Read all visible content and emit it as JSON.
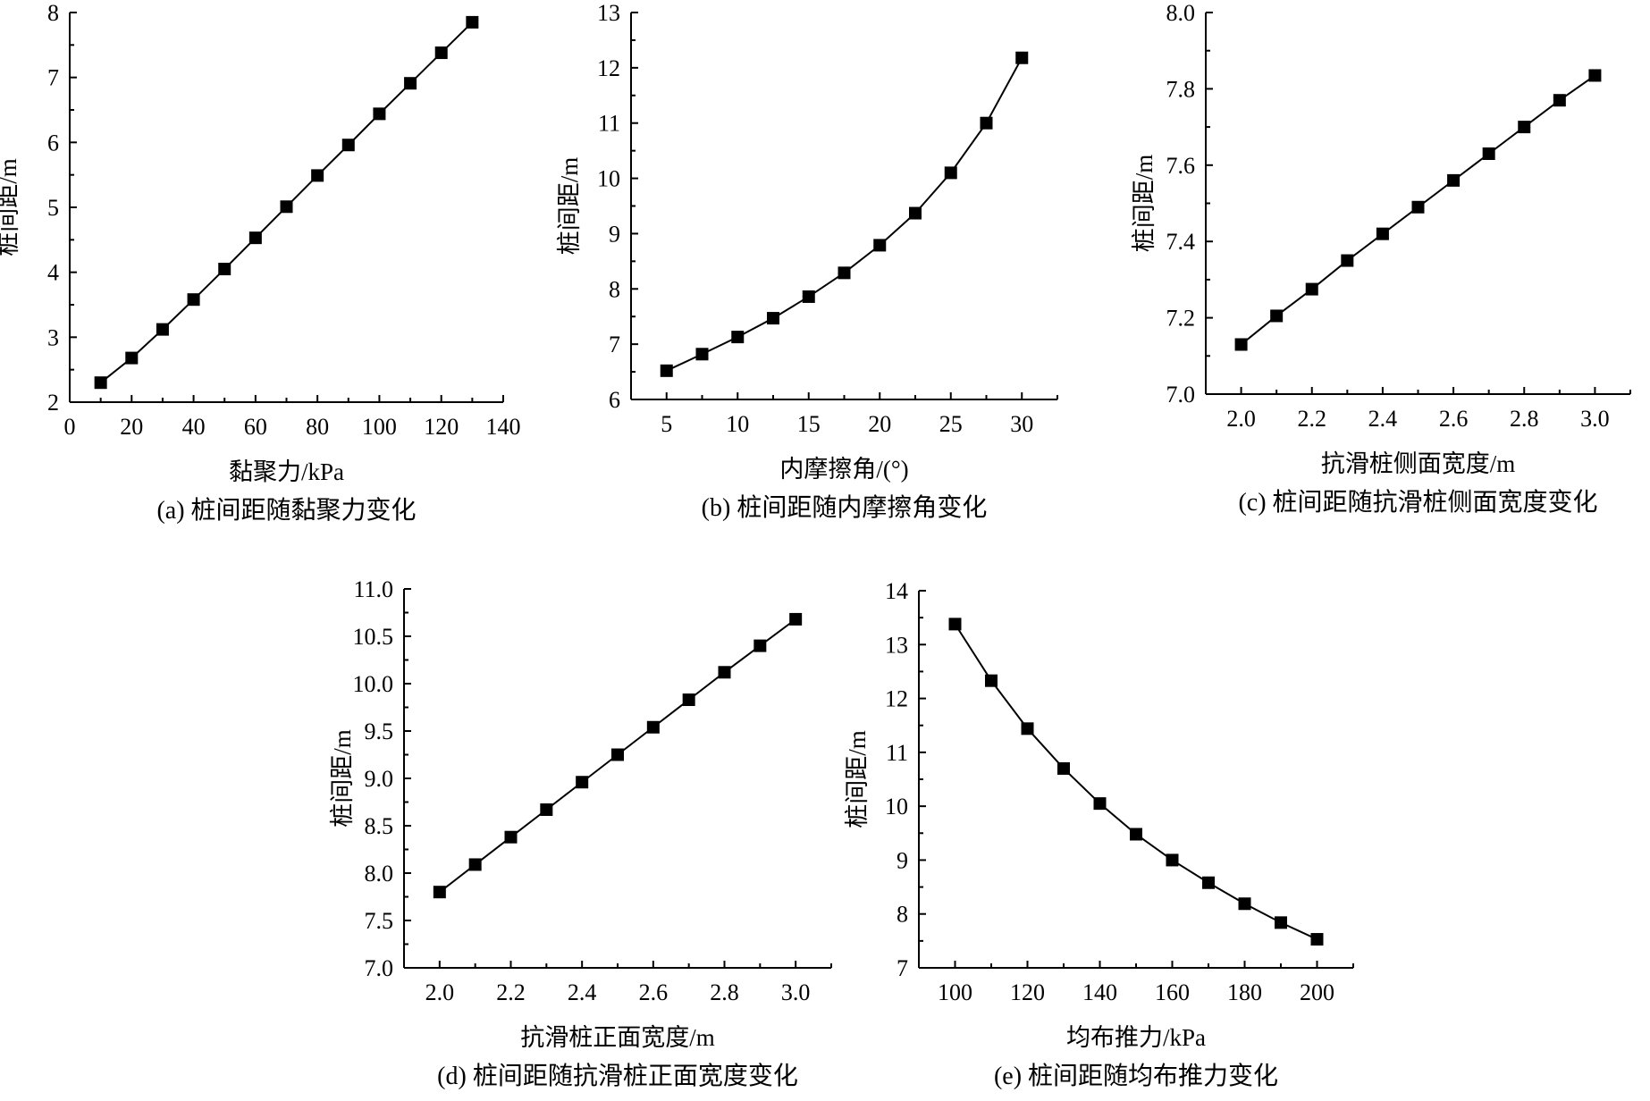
{
  "chart_data": [
    {
      "id": "a",
      "type": "line",
      "caption": "(a) 桩间距随黏聚力变化",
      "xlabel": "黏聚力/kPa",
      "ylabel": "桩间距/m",
      "xlim": [
        0,
        140
      ],
      "ylim": [
        2,
        8
      ],
      "xticks": [
        0,
        20,
        40,
        60,
        80,
        100,
        120,
        140
      ],
      "xtick_labels": [
        "0",
        "20",
        "40",
        "60",
        "80",
        "100",
        "120",
        "140"
      ],
      "yticks": [
        2,
        3,
        4,
        5,
        6,
        7,
        8
      ],
      "ytick_labels": [
        "2",
        "3",
        "4",
        "5",
        "6",
        "7",
        "8"
      ],
      "x": [
        10,
        20,
        30,
        40,
        50,
        60,
        70,
        80,
        90,
        100,
        110,
        120,
        130
      ],
      "y": [
        2.3,
        2.68,
        3.12,
        3.58,
        4.05,
        4.53,
        5.01,
        5.49,
        5.96,
        6.44,
        6.91,
        7.38,
        7.85
      ]
    },
    {
      "id": "b",
      "type": "line",
      "caption": "(b) 桩间距随内摩擦角变化",
      "xlabel": "内摩擦角/(°)",
      "ylabel": "桩间距/m",
      "xlim": [
        2.5,
        32.5
      ],
      "ylim": [
        6,
        13
      ],
      "xticks": [
        5,
        10,
        15,
        20,
        25,
        30
      ],
      "xtick_labels": [
        "5",
        "10",
        "15",
        "20",
        "25",
        "30"
      ],
      "yticks": [
        6,
        7,
        8,
        9,
        10,
        11,
        12,
        13
      ],
      "ytick_labels": [
        "6",
        "7",
        "8",
        "9",
        "10",
        "11",
        "12",
        "13"
      ],
      "x": [
        5,
        7.5,
        10,
        12.5,
        15,
        17.5,
        20,
        22.5,
        25,
        27.5,
        30
      ],
      "y": [
        6.52,
        6.82,
        7.13,
        7.47,
        7.86,
        8.29,
        8.79,
        9.37,
        10.1,
        11.0,
        12.18
      ]
    },
    {
      "id": "c",
      "type": "line",
      "caption": "(c) 桩间距随抗滑桩侧面宽度变化",
      "xlabel": "抗滑桩侧面宽度/m",
      "ylabel": "桩间距/m",
      "xlim": [
        1.9,
        3.1
      ],
      "ylim": [
        7.0,
        8.0
      ],
      "xticks": [
        2.0,
        2.2,
        2.4,
        2.6,
        2.8,
        3.0
      ],
      "xtick_labels": [
        "2.0",
        "2.2",
        "2.4",
        "2.6",
        "2.8",
        "3.0"
      ],
      "yticks": [
        7.0,
        7.2,
        7.4,
        7.6,
        7.8,
        8.0
      ],
      "ytick_labels": [
        "7.0",
        "7.2",
        "7.4",
        "7.6",
        "7.8",
        "8.0"
      ],
      "x": [
        2.0,
        2.1,
        2.2,
        2.3,
        2.4,
        2.5,
        2.6,
        2.7,
        2.8,
        2.9,
        3.0
      ],
      "y": [
        7.13,
        7.205,
        7.275,
        7.35,
        7.42,
        7.49,
        7.56,
        7.63,
        7.7,
        7.77,
        7.835
      ]
    },
    {
      "id": "d",
      "type": "line",
      "caption": "(d) 桩间距随抗滑桩正面宽度变化",
      "xlabel": "抗滑桩正面宽度/m",
      "ylabel": "桩间距/m",
      "xlim": [
        1.9,
        3.1
      ],
      "ylim": [
        7.0,
        11.0
      ],
      "xticks": [
        2.0,
        2.2,
        2.4,
        2.6,
        2.8,
        3.0
      ],
      "xtick_labels": [
        "2.0",
        "2.2",
        "2.4",
        "2.6",
        "2.8",
        "3.0"
      ],
      "yticks": [
        7.0,
        7.5,
        8.0,
        8.5,
        9.0,
        9.5,
        10.0,
        10.5,
        11.0
      ],
      "ytick_labels": [
        "7.0",
        "7.5",
        "8.0",
        "8.5",
        "9.0",
        "9.5",
        "10.0",
        "10.5",
        "11.0"
      ],
      "x": [
        2.0,
        2.1,
        2.2,
        2.3,
        2.4,
        2.5,
        2.6,
        2.7,
        2.8,
        2.9,
        3.0
      ],
      "y": [
        7.8,
        8.09,
        8.38,
        8.67,
        8.96,
        9.25,
        9.54,
        9.83,
        10.12,
        10.4,
        10.68
      ]
    },
    {
      "id": "e",
      "type": "line",
      "caption": "(e) 桩间距随均布推力变化",
      "xlabel": "均布推力/kPa",
      "ylabel": "桩间距/m",
      "xlim": [
        90,
        210
      ],
      "ylim": [
        7,
        14
      ],
      "xticks": [
        100,
        120,
        140,
        160,
        180,
        200
      ],
      "xtick_labels": [
        "100",
        "120",
        "140",
        "160",
        "180",
        "200"
      ],
      "yticks": [
        7,
        8,
        9,
        10,
        11,
        12,
        13,
        14
      ],
      "ytick_labels": [
        "7",
        "8",
        "9",
        "10",
        "11",
        "12",
        "13",
        "14"
      ],
      "x": [
        100,
        110,
        120,
        130,
        140,
        150,
        160,
        170,
        180,
        190,
        200
      ],
      "y": [
        13.38,
        12.33,
        11.44,
        10.7,
        10.05,
        9.48,
        9.0,
        8.58,
        8.19,
        7.84,
        7.53
      ]
    }
  ]
}
